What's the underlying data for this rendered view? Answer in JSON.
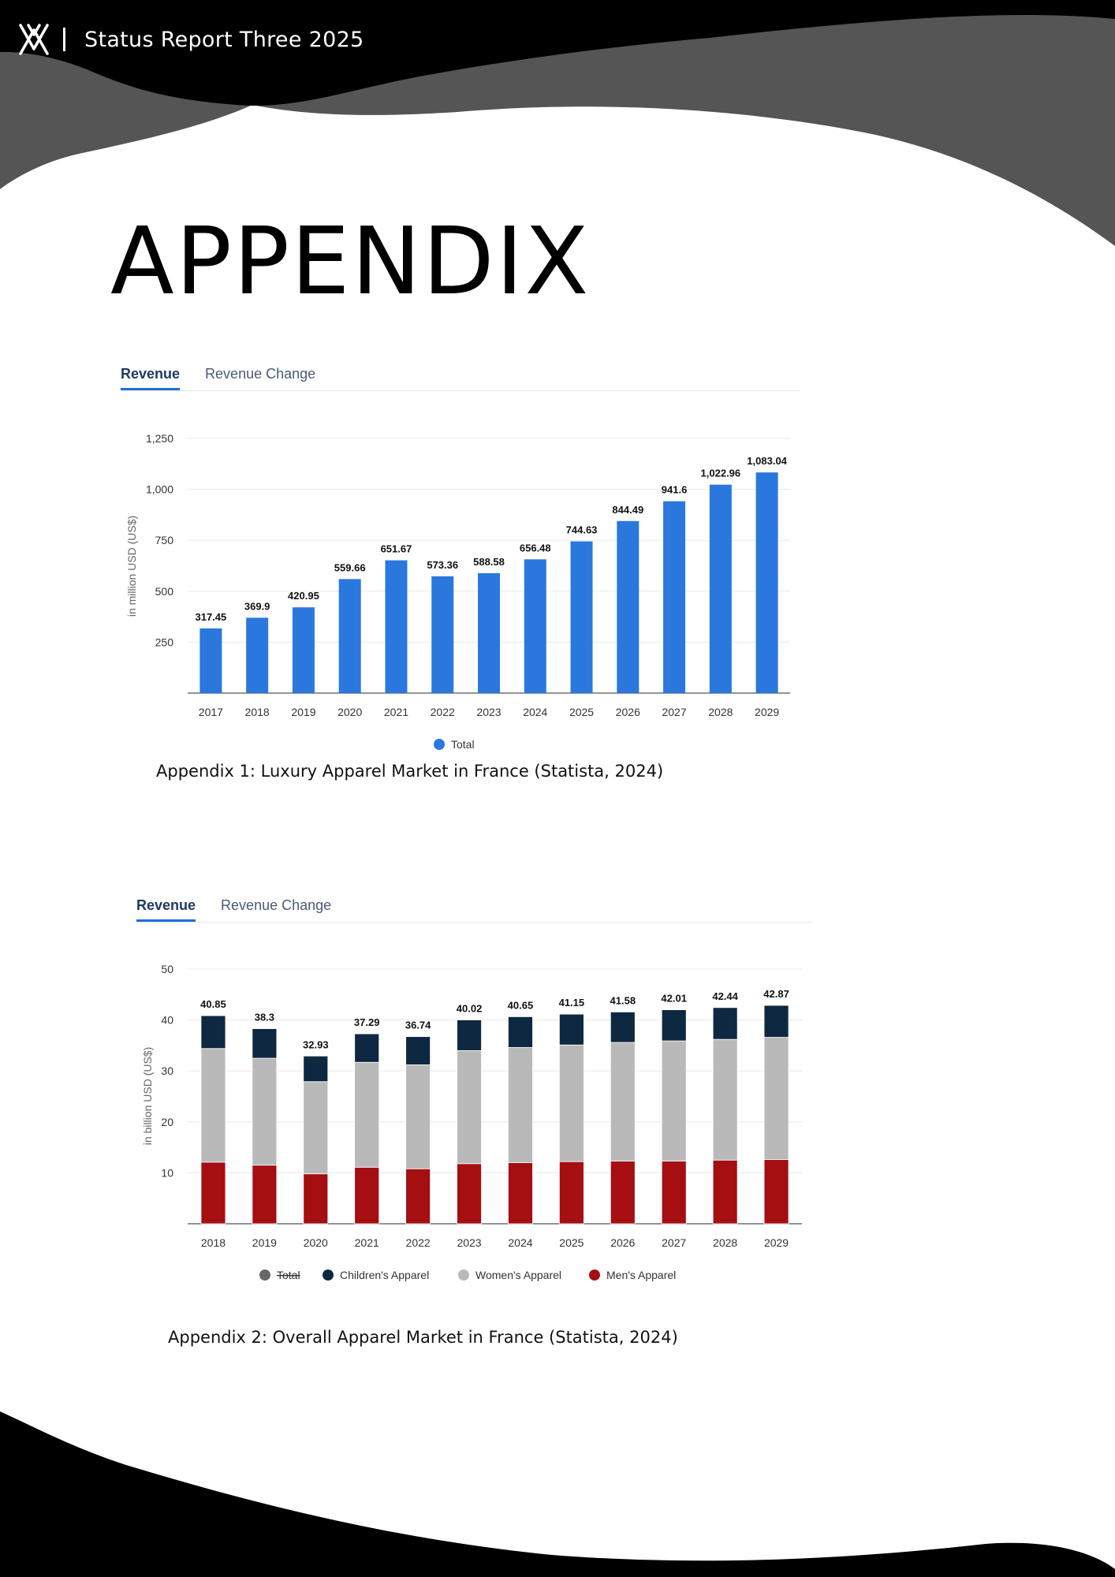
{
  "header": {
    "title": "Status Report Three 2025"
  },
  "page": {
    "title": "APPENDIX"
  },
  "colors": {
    "blue": "#2a78de",
    "navy": "#0e2841",
    "grey": "#b9b9b9",
    "red": "#a50f12",
    "total_legend": "#666666"
  },
  "chart1": {
    "tabs": [
      {
        "label": "Revenue",
        "active": true
      },
      {
        "label": "Revenue Change",
        "active": false
      }
    ],
    "caption": "Appendix 1: Luxury Apparel Market in France (Statista, 2024)"
  },
  "chart2": {
    "tabs": [
      {
        "label": "Revenue",
        "active": true
      },
      {
        "label": "Revenue Change",
        "active": false
      }
    ],
    "caption": "Appendix 2: Overall Apparel Market in France (Statista, 2024)"
  },
  "chart_data": [
    {
      "type": "bar",
      "title": "",
      "categories": [
        "2017",
        "2018",
        "2019",
        "2020",
        "2021",
        "2022",
        "2023",
        "2024",
        "2025",
        "2026",
        "2027",
        "2028",
        "2029"
      ],
      "values": [
        317.45,
        369.9,
        420.95,
        559.66,
        651.67,
        573.36,
        588.58,
        656.48,
        744.63,
        844.49,
        941.6,
        1022.96,
        1083.04
      ],
      "value_labels": [
        "317.45",
        "369.9",
        "420.95",
        "559.66",
        "651.67",
        "573.36",
        "588.58",
        "656.48",
        "744.63",
        "844.49",
        "941.6",
        "1,022.96",
        "1,083.04"
      ],
      "ylabel": "in million USD (US$)",
      "xlabel": "",
      "ylim": [
        0,
        1250
      ],
      "yticks": [
        250,
        500,
        750,
        1000,
        1250
      ],
      "ytick_labels": [
        "250",
        "500",
        "750",
        "1,000",
        "1,250"
      ],
      "legend": [
        "Total"
      ],
      "grid": true
    },
    {
      "type": "bar",
      "stacked": true,
      "title": "",
      "categories": [
        "2018",
        "2019",
        "2020",
        "2021",
        "2022",
        "2023",
        "2024",
        "2025",
        "2026",
        "2027",
        "2028",
        "2029"
      ],
      "series": [
        {
          "name": "Men's Apparel",
          "values": [
            12.1,
            11.5,
            9.8,
            11.1,
            10.8,
            11.8,
            12.0,
            12.2,
            12.3,
            12.3,
            12.5,
            12.6
          ]
        },
        {
          "name": "Women's Apparel",
          "values": [
            22.3,
            21.0,
            18.1,
            20.6,
            20.4,
            22.2,
            22.6,
            22.9,
            23.3,
            23.6,
            23.7,
            24.0
          ]
        },
        {
          "name": "Children's Apparel",
          "values": [
            6.45,
            5.8,
            5.03,
            5.59,
            5.54,
            6.02,
            6.05,
            6.05,
            5.98,
            6.11,
            6.24,
            6.27
          ]
        }
      ],
      "totals": [
        40.85,
        38.3,
        32.93,
        37.29,
        36.74,
        40.02,
        40.65,
        41.15,
        41.58,
        42.01,
        42.44,
        42.87
      ],
      "total_labels": [
        "40.85",
        "38.3",
        "32.93",
        "37.29",
        "36.74",
        "40.02",
        "40.65",
        "41.15",
        "41.58",
        "42.01",
        "42.44",
        "42.87"
      ],
      "ylabel": "in billion USD (US$)",
      "xlabel": "",
      "ylim": [
        0,
        50
      ],
      "yticks": [
        10,
        20,
        30,
        40,
        50
      ],
      "ytick_labels": [
        "10",
        "20",
        "30",
        "40",
        "50"
      ],
      "legend": [
        "Total",
        "Children's Apparel",
        "Women's Apparel",
        "Men's Apparel"
      ],
      "legend_disabled": [
        "Total"
      ],
      "grid": true
    }
  ]
}
